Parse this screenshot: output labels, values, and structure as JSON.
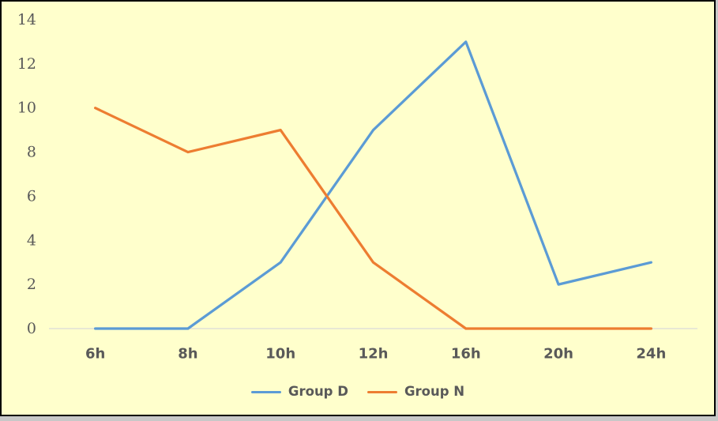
{
  "chart": {
    "background": "#FFFFCC",
    "frame_border_color": "#000000",
    "axis_line_color": "#D9D9D9",
    "label_color": "#595959"
  },
  "chart_data": {
    "type": "line",
    "title": "",
    "xlabel": "",
    "ylabel": "",
    "categories": [
      "6h",
      "8h",
      "10h",
      "12h",
      "16h",
      "20h",
      "24h"
    ],
    "series": [
      {
        "name": "Group D",
        "color": "#5B9BD5",
        "values": [
          0,
          0,
          3,
          9,
          13,
          2,
          3
        ]
      },
      {
        "name": "Group N",
        "color": "#ED7D31",
        "values": [
          10,
          8,
          9,
          3,
          0,
          0,
          0
        ]
      }
    ],
    "ylim": [
      0,
      14
    ],
    "yticks": [
      0,
      2,
      4,
      6,
      8,
      10,
      12,
      14
    ],
    "grid": false,
    "legend_position": "bottom"
  }
}
